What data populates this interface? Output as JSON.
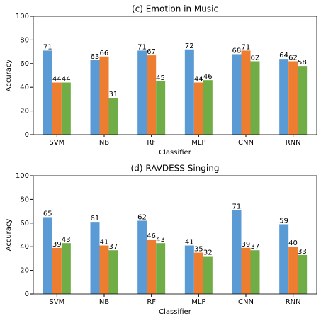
{
  "chart_data": [
    {
      "type": "bar",
      "title": "(c) Emotion in Music",
      "x_label": "Classifier",
      "y_label": "Accuracy",
      "categories": [
        "SVM",
        "NB",
        "RF",
        "MLP",
        "CNN",
        "RNN"
      ],
      "series": [
        {
          "color": "#5b9bd5",
          "values": [
            71,
            63,
            71,
            72,
            68,
            64
          ]
        },
        {
          "color": "#ed7d31",
          "values": [
            44,
            66,
            67,
            44,
            71,
            62
          ]
        },
        {
          "color": "#70ad47",
          "values": [
            44,
            31,
            45,
            46,
            62,
            58
          ]
        }
      ],
      "ylim": [
        0,
        100
      ],
      "yticks": [
        0,
        20,
        40,
        60,
        80,
        100
      ]
    },
    {
      "type": "bar",
      "title": "(d) RAVDESS Singing",
      "x_label": "Classifier",
      "y_label": "Accuracy",
      "categories": [
        "SVM",
        "NB",
        "RF",
        "MLP",
        "CNN",
        "RNN"
      ],
      "series": [
        {
          "color": "#5b9bd5",
          "values": [
            65,
            61,
            62,
            41,
            71,
            59
          ]
        },
        {
          "color": "#ed7d31",
          "values": [
            39,
            41,
            46,
            35,
            39,
            40
          ]
        },
        {
          "color": "#70ad47",
          "values": [
            43,
            37,
            43,
            32,
            37,
            33
          ]
        }
      ],
      "ylim": [
        0,
        100
      ],
      "yticks": [
        0,
        20,
        40,
        60,
        80,
        100
      ]
    }
  ]
}
